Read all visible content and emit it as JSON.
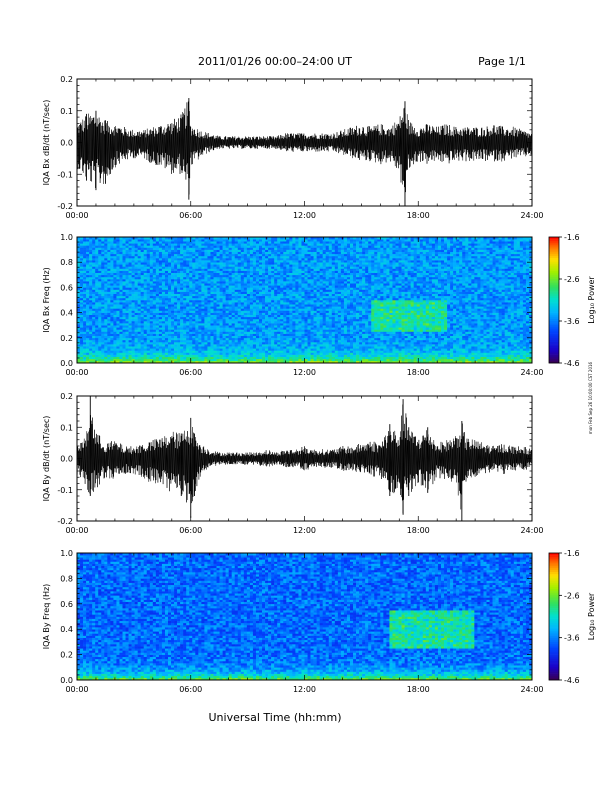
{
  "header": {
    "title": "2011/01/26  00:00–24:00 UT",
    "page_label": "Page 1/1"
  },
  "footer": {
    "xlabel": "Universal Time (hh:mm)"
  },
  "side_stamp": "mon Feb Sep 26 10:00:00 CST 2016",
  "colorbar": {
    "label": "Log₁₀ Power",
    "ticks": [
      "-1.6",
      "-2.6",
      "-3.6",
      "-4.6"
    ],
    "range": [
      -4.6,
      -1.6
    ]
  },
  "chart_data": [
    {
      "type": "line",
      "ylabel": "IQA Bx dB/dt (nT/sec)",
      "xlim": [
        0,
        24
      ],
      "ylim": [
        -0.2,
        0.2
      ],
      "x_ticks": [
        "00:00",
        "06:00",
        "12:00",
        "18:00",
        "24:00"
      ],
      "y_ticks": [
        "0.2",
        "0.1",
        "0.0",
        "-0.1",
        "-0.2"
      ],
      "series": [
        {
          "x": [
            0,
            0.5,
            1,
            1.5,
            2,
            2.5,
            3,
            3.5,
            4,
            4.5,
            5,
            5.5,
            5.9,
            6,
            6.5,
            7,
            7.5,
            8,
            8.5,
            9,
            9.5,
            10,
            10.5,
            11,
            11.5,
            12,
            12.5,
            13,
            13.5,
            14,
            14.5,
            15,
            15.5,
            16,
            16.5,
            17,
            17.3,
            17.5,
            18,
            18.5,
            19,
            19.5,
            20,
            20.5,
            21,
            21.5,
            22,
            22.5,
            23,
            23.5,
            24
          ],
          "y_max": [
            0.06,
            0.09,
            0.1,
            0.07,
            0.06,
            0.05,
            0.04,
            0.04,
            0.05,
            0.06,
            0.07,
            0.09,
            0.14,
            0.06,
            0.04,
            0.03,
            0.02,
            0.02,
            0.02,
            0.02,
            0.02,
            0.02,
            0.02,
            0.03,
            0.03,
            0.03,
            0.03,
            0.03,
            0.03,
            0.04,
            0.05,
            0.06,
            0.05,
            0.06,
            0.05,
            0.08,
            0.13,
            0.07,
            0.05,
            0.06,
            0.05,
            0.06,
            0.05,
            0.05,
            0.05,
            0.05,
            0.06,
            0.05,
            0.05,
            0.04,
            0.03
          ],
          "y_min": [
            -0.08,
            -0.12,
            -0.15,
            -0.13,
            -0.08,
            -0.06,
            -0.05,
            -0.05,
            -0.07,
            -0.08,
            -0.1,
            -0.1,
            -0.18,
            -0.08,
            -0.05,
            -0.03,
            -0.02,
            -0.02,
            -0.02,
            -0.02,
            -0.02,
            -0.02,
            -0.02,
            -0.03,
            -0.03,
            -0.03,
            -0.03,
            -0.03,
            -0.03,
            -0.04,
            -0.05,
            -0.06,
            -0.06,
            -0.07,
            -0.06,
            -0.1,
            -0.2,
            -0.09,
            -0.06,
            -0.07,
            -0.06,
            -0.07,
            -0.06,
            -0.06,
            -0.06,
            -0.06,
            -0.06,
            -0.06,
            -0.05,
            -0.05,
            -0.04
          ]
        }
      ]
    },
    {
      "type": "heatmap",
      "ylabel": "IQA Bx Freq (Hz)",
      "xlim": [
        0,
        24
      ],
      "ylim": [
        0.0,
        1.0
      ],
      "x_ticks": [
        "00:00",
        "06:00",
        "12:00",
        "18:00",
        "24:00"
      ],
      "y_ticks": [
        "1.0",
        "0.8",
        "0.6",
        "0.4",
        "0.2",
        "0.0"
      ],
      "value_range": [
        -4.6,
        -1.6
      ],
      "background_power": -3.5,
      "low_freq_power": -2.4,
      "features": [
        {
          "t": [
            15.5,
            19.5
          ],
          "f": [
            0.25,
            0.5
          ],
          "power": -3.0
        }
      ]
    },
    {
      "type": "line",
      "ylabel": "IQA By dB/dt (nT/sec)",
      "xlim": [
        0,
        24
      ],
      "ylim": [
        -0.2,
        0.2
      ],
      "x_ticks": [
        "00:00",
        "06:00",
        "12:00",
        "18:00",
        "24:00"
      ],
      "y_ticks": [
        "0.2",
        "0.1",
        "0.0",
        "-0.1",
        "-0.2"
      ],
      "series": [
        {
          "x": [
            0,
            0.5,
            0.7,
            1,
            1.5,
            2,
            2.5,
            3,
            3.5,
            4,
            4.5,
            5,
            5.5,
            6,
            6.2,
            6.5,
            7,
            7.5,
            8,
            8.5,
            9,
            9.5,
            10,
            10.5,
            11,
            11.5,
            12,
            12.5,
            13,
            13.5,
            14,
            14.5,
            15,
            15.5,
            16,
            16.5,
            17,
            17.2,
            17.5,
            18,
            18.5,
            19,
            19.5,
            20,
            20.3,
            20.5,
            21,
            21.5,
            22,
            22.5,
            23,
            23.5,
            24
          ],
          "y_max": [
            0.04,
            0.08,
            0.2,
            0.09,
            0.05,
            0.06,
            0.04,
            0.04,
            0.05,
            0.06,
            0.07,
            0.09,
            0.08,
            0.13,
            0.08,
            0.05,
            0.03,
            0.02,
            0.02,
            0.02,
            0.02,
            0.02,
            0.03,
            0.02,
            0.03,
            0.03,
            0.04,
            0.03,
            0.03,
            0.03,
            0.04,
            0.04,
            0.05,
            0.06,
            0.05,
            0.11,
            0.08,
            0.19,
            0.1,
            0.07,
            0.1,
            0.05,
            0.06,
            0.08,
            0.12,
            0.07,
            0.06,
            0.05,
            0.04,
            0.05,
            0.04,
            0.04,
            0.03
          ],
          "y_min": [
            -0.05,
            -0.1,
            -0.12,
            -0.1,
            -0.06,
            -0.07,
            -0.05,
            -0.05,
            -0.07,
            -0.08,
            -0.09,
            -0.11,
            -0.12,
            -0.19,
            -0.12,
            -0.06,
            -0.03,
            -0.02,
            -0.02,
            -0.02,
            -0.02,
            -0.02,
            -0.03,
            -0.02,
            -0.03,
            -0.03,
            -0.04,
            -0.03,
            -0.03,
            -0.03,
            -0.04,
            -0.04,
            -0.05,
            -0.06,
            -0.06,
            -0.12,
            -0.1,
            -0.18,
            -0.12,
            -0.08,
            -0.11,
            -0.06,
            -0.07,
            -0.09,
            -0.2,
            -0.08,
            -0.06,
            -0.05,
            -0.04,
            -0.05,
            -0.04,
            -0.04,
            -0.03
          ]
        }
      ]
    },
    {
      "type": "heatmap",
      "ylabel": "IQA By Freq (Hz)",
      "xlim": [
        0,
        24
      ],
      "ylim": [
        0.0,
        1.0
      ],
      "x_ticks": [
        "00:00",
        "06:00",
        "12:00",
        "18:00",
        "24:00"
      ],
      "y_ticks": [
        "1.0",
        "0.8",
        "0.6",
        "0.4",
        "0.2",
        "0.0"
      ],
      "value_range": [
        -4.6,
        -1.6
      ],
      "background_power": -3.7,
      "low_freq_power": -2.5,
      "features": [
        {
          "t": [
            16.5,
            21.0
          ],
          "f": [
            0.25,
            0.55
          ],
          "power": -3.0
        }
      ]
    }
  ]
}
